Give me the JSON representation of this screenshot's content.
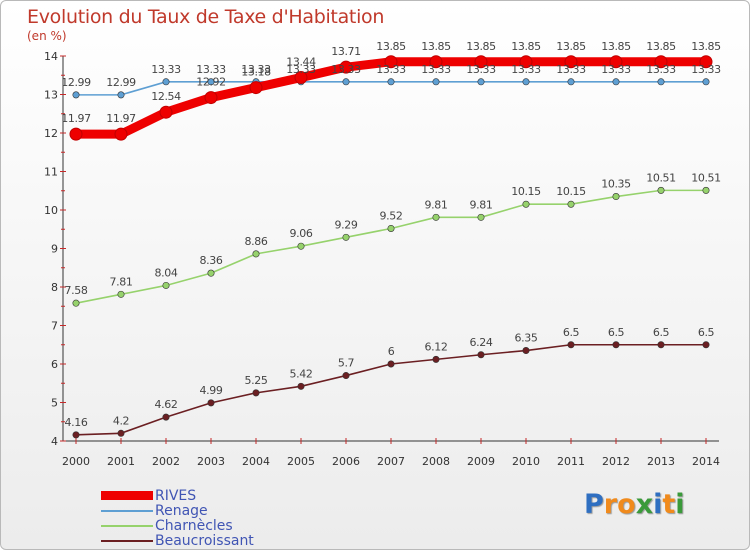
{
  "chart_data": {
    "type": "line",
    "title": "Evolution du Taux de Taxe d'Habitation",
    "subtitle": "(en %)",
    "x": [
      "2000",
      "2001",
      "2002",
      "2003",
      "2004",
      "2005",
      "2006",
      "2007",
      "2008",
      "2009",
      "2010",
      "2011",
      "2012",
      "2013",
      "2014"
    ],
    "ylim": [
      4,
      14
    ],
    "yticks": [
      "4",
      "5",
      "6",
      "7",
      "8",
      "9",
      "10",
      "11",
      "12",
      "13",
      "14"
    ],
    "series": [
      {
        "name": "RIVES",
        "color": "#ee0000",
        "values": [
          11.97,
          11.97,
          12.54,
          12.92,
          13.18,
          13.44,
          13.71,
          13.85,
          13.85,
          13.85,
          13.85,
          13.85,
          13.85,
          13.85,
          13.85
        ],
        "labels": [
          "11.97",
          "11.97",
          "12.54",
          "12.92",
          "13.18",
          "13.44",
          "13.71",
          "13.85",
          "13.85",
          "13.85",
          "13.85",
          "13.85",
          "13.85",
          "13.85",
          "13.85"
        ]
      },
      {
        "name": "Renage",
        "color": "#5e9fd3",
        "values": [
          12.99,
          12.99,
          13.33,
          13.33,
          13.33,
          13.33,
          13.33,
          13.33,
          13.33,
          13.33,
          13.33,
          13.33,
          13.33,
          13.33,
          13.33
        ],
        "labels": [
          "12.99",
          "12.99",
          "13.33",
          "13.33",
          "13.33",
          "13.33",
          "13.33",
          "13.33",
          "13.33",
          "13.33",
          "13.33",
          "13.33",
          "13.33",
          "13.33",
          "13.33"
        ]
      },
      {
        "name": "Charnècles",
        "color": "#96d26c",
        "values": [
          7.58,
          7.81,
          8.04,
          8.36,
          8.86,
          9.06,
          9.29,
          9.52,
          9.81,
          9.81,
          10.15,
          10.15,
          10.35,
          10.51,
          10.51
        ],
        "labels": [
          "7.58",
          "7.81",
          "8.04",
          "8.36",
          "8.86",
          "9.06",
          "9.29",
          "9.52",
          "9.81",
          "9.81",
          "10.15",
          "10.15",
          "10.35",
          "10.51",
          "10.51"
        ]
      },
      {
        "name": "Beaucroissant",
        "color": "#6b1f22",
        "values": [
          4.16,
          4.2,
          4.62,
          4.99,
          5.25,
          5.42,
          5.7,
          6,
          6.12,
          6.24,
          6.35,
          6.5,
          6.5,
          6.5,
          6.5
        ],
        "labels": [
          "4.16",
          "4.2",
          "4.62",
          "4.99",
          "5.25",
          "5.42",
          "5.7",
          "6",
          "6.12",
          "6.24",
          "6.35",
          "6.5",
          "6.5",
          "6.5",
          "6.5"
        ]
      }
    ],
    "legend_placement": "bottom-left",
    "grid": false
  },
  "brand": {
    "letters": [
      "P",
      "r",
      "o",
      "x",
      "i",
      "t",
      "i"
    ],
    "colors": [
      "#2f6fc1",
      "#f08a1c",
      "#f08a1c",
      "#3a9a3a",
      "#2f6fc1",
      "#f08a1c",
      "#3a9a3a"
    ]
  }
}
